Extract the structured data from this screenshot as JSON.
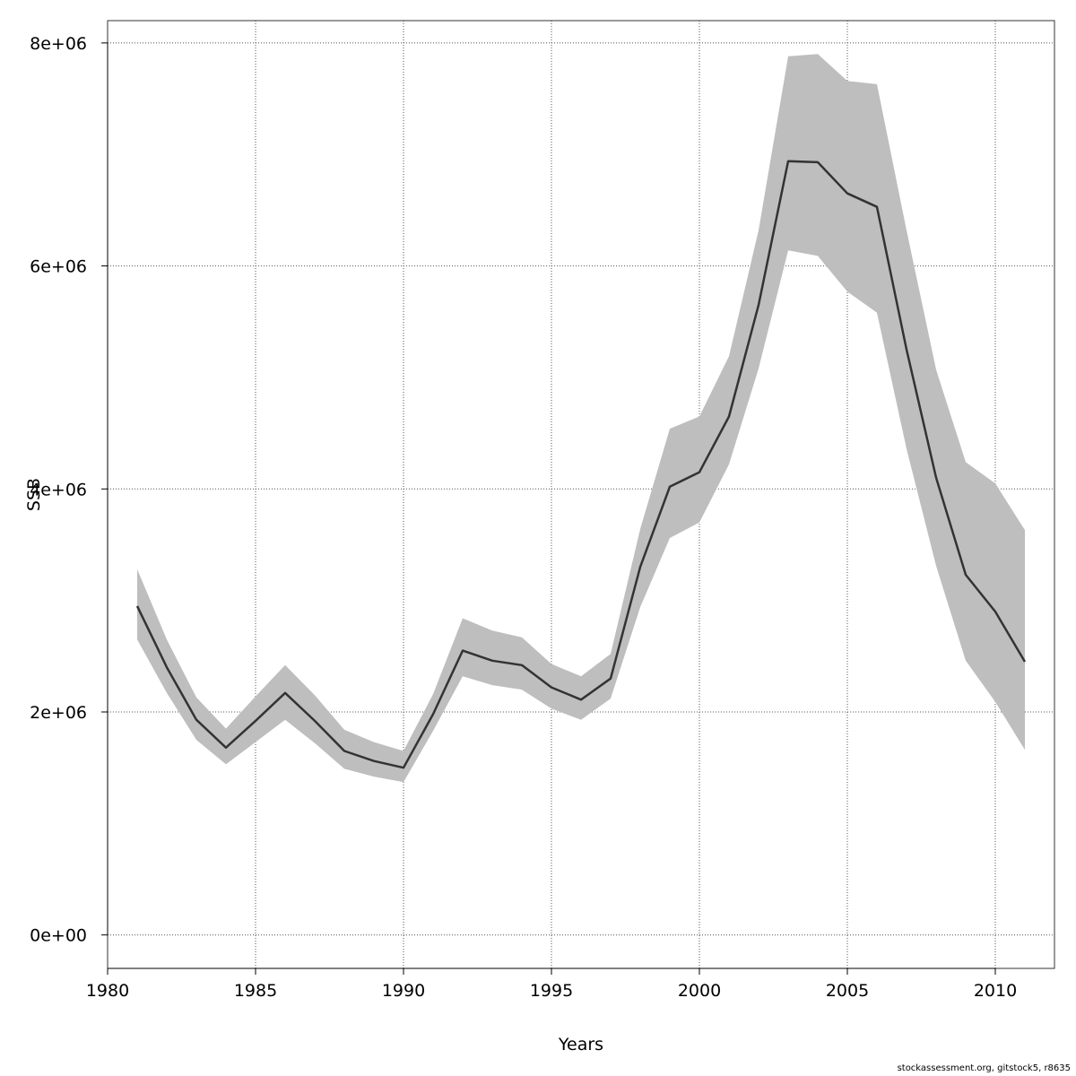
{
  "chart_data": {
    "type": "line",
    "xlabel": "Years",
    "ylabel": "SSB",
    "xlim": [
      1980,
      2012
    ],
    "ylim": [
      -300000,
      8200000
    ],
    "x_ticks": [
      1980,
      1985,
      1990,
      1995,
      2000,
      2005,
      2010
    ],
    "x_tick_labels": [
      "1980",
      "1985",
      "1990",
      "1995",
      "2000",
      "2005",
      "2010"
    ],
    "y_ticks": [
      0,
      2000000,
      4000000,
      6000000,
      8000000
    ],
    "y_tick_labels": [
      "0e+00",
      "2e+06",
      "4e+06",
      "6e+06",
      "8e+06"
    ],
    "grid": true,
    "colors": {
      "line": "#333333",
      "band": "#bebebe",
      "grid": "#555555"
    },
    "series": [
      {
        "x": [
          1981,
          1982,
          1983,
          1984,
          1985,
          1986,
          1987,
          1988,
          1989,
          1990,
          1991,
          1992,
          1993,
          1994,
          1995,
          1996,
          1997,
          1998,
          1999,
          2000,
          2001,
          2002,
          2003,
          2004,
          2005,
          2006,
          2007,
          2008,
          2009,
          2010,
          2011
        ],
        "values": [
          2950000,
          2400000,
          1930000,
          1680000,
          1920000,
          2170000,
          1920000,
          1650000,
          1560000,
          1500000,
          1980000,
          2550000,
          2460000,
          2420000,
          2220000,
          2110000,
          2300000,
          3300000,
          4020000,
          4150000,
          4650000,
          5650000,
          6940000,
          6930000,
          6650000,
          6530000,
          5250000,
          4100000,
          3230000,
          2900000,
          2450000
        ],
        "lower": [
          2650000,
          2170000,
          1750000,
          1530000,
          1730000,
          1930000,
          1720000,
          1490000,
          1420000,
          1370000,
          1830000,
          2320000,
          2240000,
          2200000,
          2030000,
          1930000,
          2120000,
          2940000,
          3560000,
          3700000,
          4220000,
          5080000,
          6140000,
          6090000,
          5770000,
          5580000,
          4360000,
          3310000,
          2460000,
          2090000,
          1660000
        ],
        "upper": [
          3280000,
          2650000,
          2130000,
          1850000,
          2140000,
          2420000,
          2150000,
          1840000,
          1730000,
          1650000,
          2160000,
          2840000,
          2730000,
          2670000,
          2430000,
          2320000,
          2520000,
          3640000,
          4540000,
          4650000,
          5190000,
          6320000,
          7880000,
          7900000,
          7660000,
          7630000,
          6320000,
          5070000,
          4240000,
          4050000,
          3630000
        ]
      }
    ]
  },
  "footer": {
    "text": "stockassessment.org, gitstock5, r8635"
  }
}
